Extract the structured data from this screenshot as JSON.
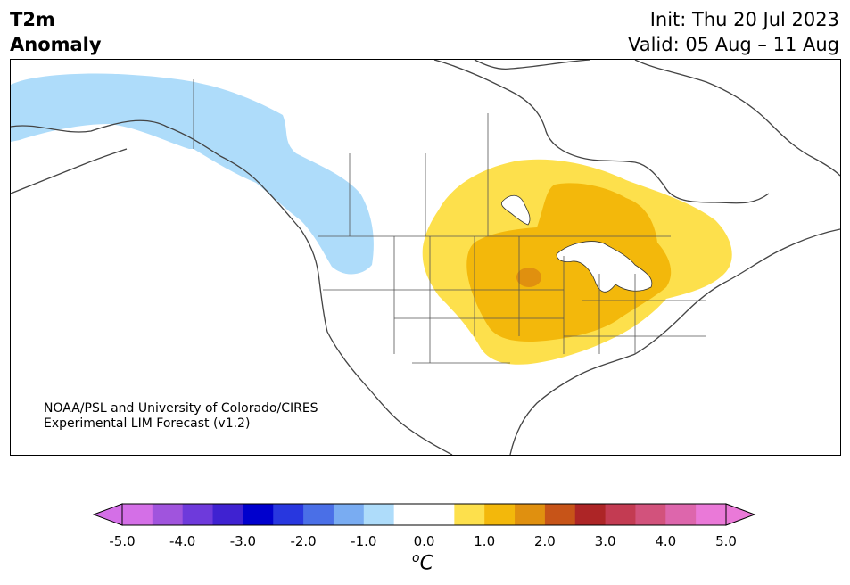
{
  "header": {
    "title_line1": "T2m",
    "title_line2": "Anomaly",
    "init": "Init: Thu 20 Jul 2023",
    "valid": "Valid: 05 Aug – 11 Aug"
  },
  "credit": {
    "line1": "NOAA/PSL and University of Colorado/CIRES",
    "line2": "Experimental LIM Forecast (v1.2)"
  },
  "map": {
    "region": "North America",
    "shading": [
      {
        "area": "Alaska interior to British Columbia",
        "anomaly_range": "-1.0 to -0.5",
        "color": "#aedcfa"
      },
      {
        "area": "Northern Plains, Great Lakes, Ontario, Northeast",
        "anomaly_range": "0.5 to 1.0",
        "color": "#fde04c"
      },
      {
        "area": "Central Plains, Midwest, Ohio Valley, western Ontario",
        "anomaly_range": "1.0 to 1.5",
        "color": "#f3b80b"
      },
      {
        "area": "Nebraska/Iowa border",
        "anomaly_range": "1.5 to 2.0",
        "color": "#e0900f"
      }
    ]
  },
  "colorbar": {
    "colors": [
      "#d46fe7",
      "#a054dd",
      "#6e3adb",
      "#3f22d1",
      "#0000cd",
      "#2837df",
      "#4a6fe7",
      "#79acf2",
      "#aedcfa",
      "#ffffff",
      "#ffffff",
      "#fde04c",
      "#f3b80b",
      "#e0900f",
      "#c75418",
      "#ad2526",
      "#c33b52",
      "#d2527c",
      "#dd66ac",
      "#ea79d8"
    ],
    "under_color": "#d46fe7",
    "over_color": "#ea79d8",
    "ticks": [
      "-5.0",
      "-4.0",
      "-3.0",
      "-2.0",
      "-1.0",
      "0.0",
      "1.0",
      "2.0",
      "3.0",
      "4.0",
      "5.0"
    ],
    "unit_prefix": "o",
    "unit": "C"
  }
}
